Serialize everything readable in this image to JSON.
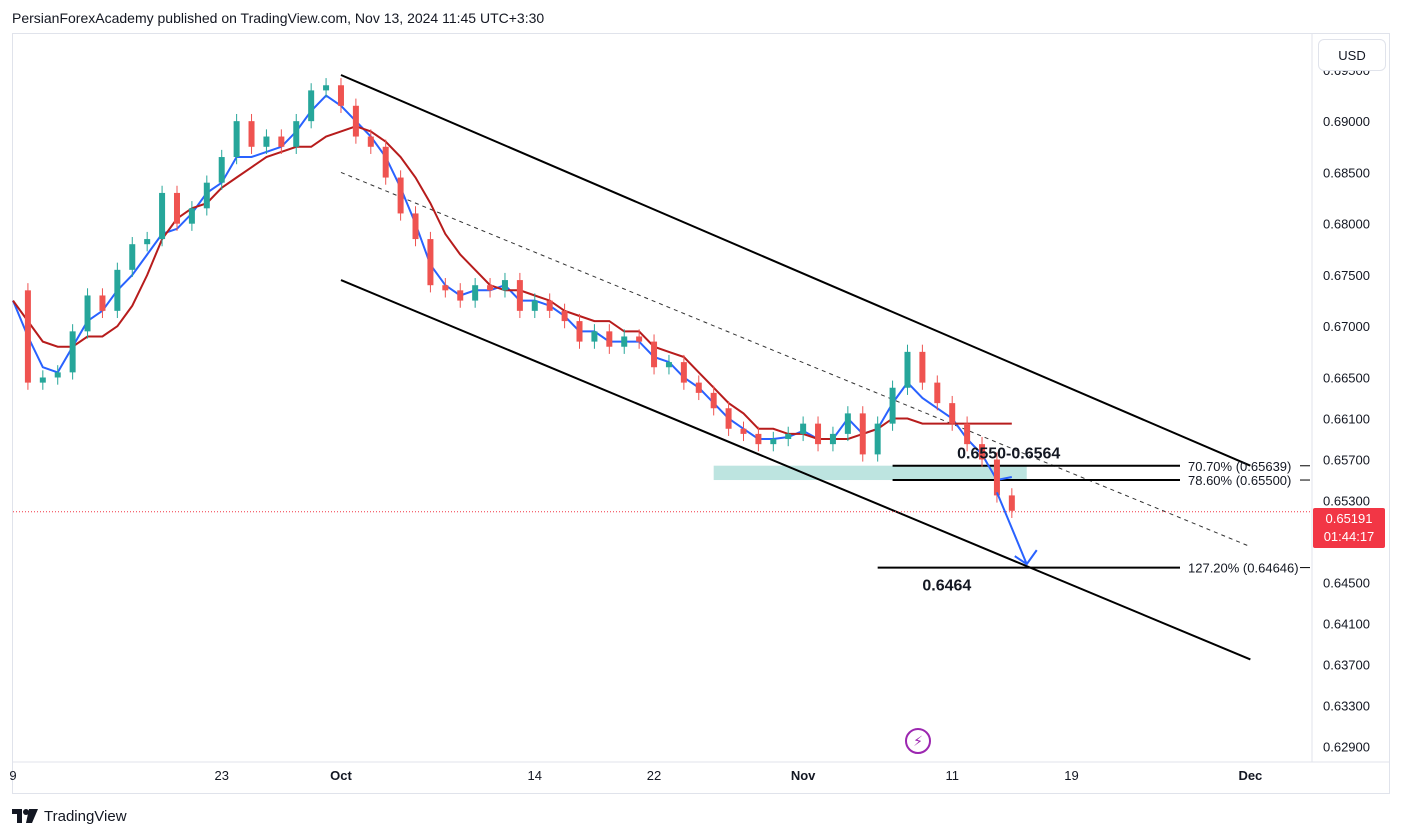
{
  "header": {
    "publisher_line": "PersianForexAcademy published on TradingView.com, Nov 13, 2024 11:45 UTC+3:30"
  },
  "toolbar": {
    "currency": "USD"
  },
  "price_tag": {
    "price": "0.65191",
    "countdown": "01:44:17",
    "color": "#f23645"
  },
  "branding": {
    "logo_text": "TradingView"
  },
  "icons": {
    "flash": "flash-icon",
    "logo": "tradingview-logo-icon"
  },
  "annotations": {
    "zone_label": "0.6550-0.6564",
    "target_label": "0.6464"
  },
  "chart_data": {
    "type": "line",
    "symbol_quote": "USD",
    "y_ticks": [
      0.695,
      0.69,
      0.685,
      0.68,
      0.675,
      0.67,
      0.665,
      0.661,
      0.657,
      0.653,
      0.649,
      0.645,
      0.641,
      0.637,
      0.633,
      0.629
    ],
    "y_tick_labels": [
      "0.69500",
      "0.69000",
      "0.68500",
      "0.68000",
      "0.67500",
      "0.67000",
      "0.66500",
      "0.66100",
      "0.65700",
      "0.65300",
      "0.64900",
      "0.64500",
      "0.64100",
      "0.63700",
      "0.63300",
      "0.62900"
    ],
    "x_tick_labels": [
      {
        "label": "9",
        "bold": false,
        "day": 0
      },
      {
        "label": "23",
        "bold": false,
        "day": 14
      },
      {
        "label": "Oct",
        "bold": true,
        "day": 22
      },
      {
        "label": "14",
        "bold": false,
        "day": 35
      },
      {
        "label": "22",
        "bold": false,
        "day": 43
      },
      {
        "label": "Nov",
        "bold": true,
        "day": 53
      },
      {
        "label": "11",
        "bold": false,
        "day": 63
      },
      {
        "label": "19",
        "bold": false,
        "day": 71
      },
      {
        "label": "Dec",
        "bold": true,
        "day": 83
      }
    ],
    "price_series": {
      "name": "",
      "color": "#26a69a",
      "points": [
        [
          0,
          0.6735
        ],
        [
          1,
          0.6645
        ],
        [
          2,
          0.665
        ],
        [
          3,
          0.6655
        ],
        [
          4,
          0.6695
        ],
        [
          5,
          0.673
        ],
        [
          6,
          0.6715
        ],
        [
          7,
          0.6755
        ],
        [
          8,
          0.678
        ],
        [
          9,
          0.6785
        ],
        [
          10,
          0.683
        ],
        [
          11,
          0.68
        ],
        [
          12,
          0.6815
        ],
        [
          13,
          0.684
        ],
        [
          14,
          0.6865
        ],
        [
          15,
          0.69
        ],
        [
          16,
          0.6875
        ],
        [
          17,
          0.6885
        ],
        [
          18,
          0.6875
        ],
        [
          19,
          0.69
        ],
        [
          20,
          0.693
        ],
        [
          21,
          0.6935
        ],
        [
          22,
          0.6915
        ],
        [
          23,
          0.6885
        ],
        [
          24,
          0.6875
        ],
        [
          25,
          0.6845
        ],
        [
          26,
          0.681
        ],
        [
          27,
          0.6785
        ],
        [
          28,
          0.674
        ],
        [
          29,
          0.6735
        ],
        [
          30,
          0.6725
        ],
        [
          31,
          0.674
        ],
        [
          32,
          0.6735
        ],
        [
          33,
          0.6745
        ],
        [
          34,
          0.6715
        ],
        [
          35,
          0.6725
        ],
        [
          36,
          0.6715
        ],
        [
          37,
          0.6705
        ],
        [
          38,
          0.6685
        ],
        [
          39,
          0.6695
        ],
        [
          40,
          0.668
        ],
        [
          41,
          0.669
        ],
        [
          42,
          0.6685
        ],
        [
          43,
          0.666
        ],
        [
          44,
          0.6665
        ],
        [
          45,
          0.6645
        ],
        [
          46,
          0.6635
        ],
        [
          47,
          0.662
        ],
        [
          48,
          0.66
        ],
        [
          49,
          0.6595
        ],
        [
          50,
          0.6585
        ],
        [
          51,
          0.659
        ],
        [
          52,
          0.6595
        ],
        [
          53,
          0.6605
        ],
        [
          54,
          0.6585
        ],
        [
          55,
          0.6595
        ],
        [
          56,
          0.6615
        ],
        [
          57,
          0.6575
        ],
        [
          58,
          0.6605
        ],
        [
          59,
          0.664
        ],
        [
          60,
          0.6675
        ],
        [
          61,
          0.6645
        ],
        [
          62,
          0.6625
        ],
        [
          63,
          0.6605
        ],
        [
          64,
          0.6585
        ],
        [
          65,
          0.657
        ],
        [
          66,
          0.6535
        ],
        [
          67,
          0.652
        ]
      ]
    },
    "indicators": [
      {
        "name": "",
        "color": "#2962ff",
        "points": [
          [
            0,
            0.6725
          ],
          [
            1,
            0.669
          ],
          [
            2,
            0.666
          ],
          [
            3,
            0.6655
          ],
          [
            4,
            0.668
          ],
          [
            5,
            0.6705
          ],
          [
            6,
            0.6715
          ],
          [
            7,
            0.6735
          ],
          [
            8,
            0.675
          ],
          [
            9,
            0.677
          ],
          [
            10,
            0.679
          ],
          [
            11,
            0.6795
          ],
          [
            12,
            0.681
          ],
          [
            13,
            0.683
          ],
          [
            14,
            0.684
          ],
          [
            15,
            0.6865
          ],
          [
            16,
            0.6865
          ],
          [
            17,
            0.687
          ],
          [
            18,
            0.6875
          ],
          [
            19,
            0.689
          ],
          [
            20,
            0.691
          ],
          [
            21,
            0.6925
          ],
          [
            22,
            0.6915
          ],
          [
            23,
            0.69
          ],
          [
            24,
            0.6885
          ],
          [
            25,
            0.6865
          ],
          [
            26,
            0.6835
          ],
          [
            27,
            0.68
          ],
          [
            28,
            0.676
          ],
          [
            29,
            0.674
          ],
          [
            30,
            0.673
          ],
          [
            31,
            0.6735
          ],
          [
            32,
            0.6735
          ],
          [
            33,
            0.674
          ],
          [
            34,
            0.6725
          ],
          [
            35,
            0.6725
          ],
          [
            36,
            0.672
          ],
          [
            37,
            0.671
          ],
          [
            38,
            0.6695
          ],
          [
            39,
            0.6695
          ],
          [
            40,
            0.6685
          ],
          [
            41,
            0.6685
          ],
          [
            42,
            0.6685
          ],
          [
            43,
            0.667
          ],
          [
            44,
            0.6665
          ],
          [
            45,
            0.665
          ],
          [
            46,
            0.664
          ],
          [
            47,
            0.6625
          ],
          [
            48,
            0.661
          ],
          [
            49,
            0.66
          ],
          [
            50,
            0.659
          ],
          [
            51,
            0.659
          ],
          [
            52,
            0.6592
          ],
          [
            53,
            0.6598
          ],
          [
            54,
            0.659
          ],
          [
            55,
            0.659
          ],
          [
            56,
            0.661
          ],
          [
            57,
            0.6595
          ],
          [
            58,
            0.66
          ],
          [
            59,
            0.6625
          ],
          [
            60,
            0.6645
          ],
          [
            61,
            0.663
          ],
          [
            62,
            0.662
          ],
          [
            63,
            0.661
          ],
          [
            64,
            0.659
          ],
          [
            65,
            0.6575
          ],
          [
            66,
            0.655
          ],
          [
            67,
            0.6553
          ]
        ]
      },
      {
        "name": "",
        "color": "#b71c1c",
        "points": [
          [
            0,
            0.6725
          ],
          [
            1,
            0.6705
          ],
          [
            2,
            0.6685
          ],
          [
            3,
            0.668
          ],
          [
            4,
            0.668
          ],
          [
            5,
            0.669
          ],
          [
            6,
            0.669
          ],
          [
            7,
            0.67
          ],
          [
            8,
            0.672
          ],
          [
            9,
            0.675
          ],
          [
            10,
            0.6785
          ],
          [
            11,
            0.6805
          ],
          [
            12,
            0.6815
          ],
          [
            13,
            0.682
          ],
          [
            14,
            0.6835
          ],
          [
            15,
            0.6845
          ],
          [
            16,
            0.6855
          ],
          [
            17,
            0.6865
          ],
          [
            18,
            0.687
          ],
          [
            19,
            0.6875
          ],
          [
            20,
            0.6875
          ],
          [
            21,
            0.6885
          ],
          [
            22,
            0.689
          ],
          [
            23,
            0.6895
          ],
          [
            24,
            0.689
          ],
          [
            25,
            0.688
          ],
          [
            26,
            0.6865
          ],
          [
            27,
            0.6845
          ],
          [
            28,
            0.682
          ],
          [
            29,
            0.679
          ],
          [
            30,
            0.677
          ],
          [
            31,
            0.6755
          ],
          [
            32,
            0.674
          ],
          [
            33,
            0.6735
          ],
          [
            34,
            0.6735
          ],
          [
            35,
            0.673
          ],
          [
            36,
            0.6725
          ],
          [
            37,
            0.6715
          ],
          [
            38,
            0.671
          ],
          [
            39,
            0.6705
          ],
          [
            40,
            0.6705
          ],
          [
            41,
            0.6695
          ],
          [
            42,
            0.6695
          ],
          [
            43,
            0.668
          ],
          [
            44,
            0.6675
          ],
          [
            45,
            0.667
          ],
          [
            46,
            0.6655
          ],
          [
            47,
            0.664
          ],
          [
            48,
            0.6625
          ],
          [
            49,
            0.6615
          ],
          [
            50,
            0.66
          ],
          [
            51,
            0.66
          ],
          [
            52,
            0.6595
          ],
          [
            53,
            0.6595
          ],
          [
            54,
            0.659
          ],
          [
            55,
            0.659
          ],
          [
            56,
            0.659
          ],
          [
            57,
            0.6595
          ],
          [
            58,
            0.66
          ],
          [
            59,
            0.661
          ],
          [
            60,
            0.661
          ],
          [
            61,
            0.6605
          ],
          [
            62,
            0.6605
          ],
          [
            63,
            0.6605
          ],
          [
            64,
            0.6605
          ],
          [
            65,
            0.6605
          ],
          [
            66,
            0.6605
          ],
          [
            67,
            0.6605
          ]
        ]
      }
    ],
    "channel": {
      "color": "#000000",
      "upper": [
        [
          22,
          0.6945
        ],
        [
          83,
          0.6564
        ]
      ],
      "lower": [
        [
          22,
          0.6745
        ],
        [
          83,
          0.6375
        ]
      ],
      "mid_dashed": [
        [
          22,
          0.685
        ],
        [
          83,
          0.6485
        ]
      ]
    },
    "fib_levels": [
      {
        "label": "70.70% (0.65639)",
        "value": 0.65639
      },
      {
        "label": "78.60% (0.65500)",
        "value": 0.655
      },
      {
        "label": "127.20% (0.64646)",
        "value": 0.64646
      }
    ],
    "zone": {
      "low": 0.655,
      "high": 0.6564,
      "color": "#b2dfdb"
    },
    "projection_arrow": {
      "color": "#2962ff",
      "from": [
        66,
        0.6538
      ],
      "to": [
        68,
        0.6468
      ]
    },
    "current_price": 0.65191,
    "ylim": [
      0.6275,
      0.6985
    ],
    "xlim": [
      0,
      87
    ],
    "grid": false
  }
}
